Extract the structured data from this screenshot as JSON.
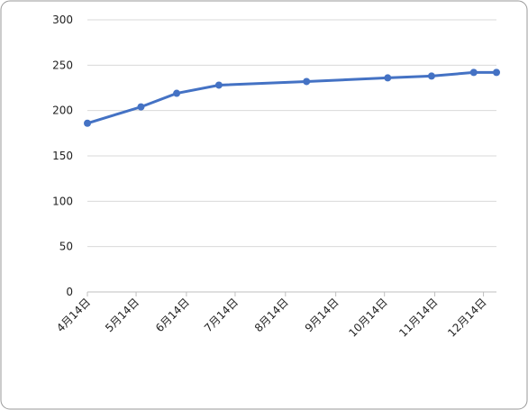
{
  "chart_data": {
    "type": "line",
    "x": [
      "4月14日",
      "5月17日",
      "6月8日",
      "7月4日",
      "8月27日",
      "10月16日",
      "11月12日",
      "12月8日",
      "12月22日"
    ],
    "series": [
      {
        "color": "#4472c4",
        "values": [
          186,
          204,
          219,
          228,
          232,
          236,
          238,
          242,
          242
        ]
      }
    ],
    "xlim": [
      "4月14日",
      "12月22日"
    ],
    "xticks": [
      "4月14日",
      "5月14日",
      "6月14日",
      "7月14日",
      "8月14日",
      "9月14日",
      "10月14日",
      "11月14日",
      "12月14日"
    ],
    "ylim": [
      0,
      300
    ],
    "yticks": [
      0,
      50,
      100,
      150,
      200,
      250,
      300
    ],
    "grid": true
  }
}
